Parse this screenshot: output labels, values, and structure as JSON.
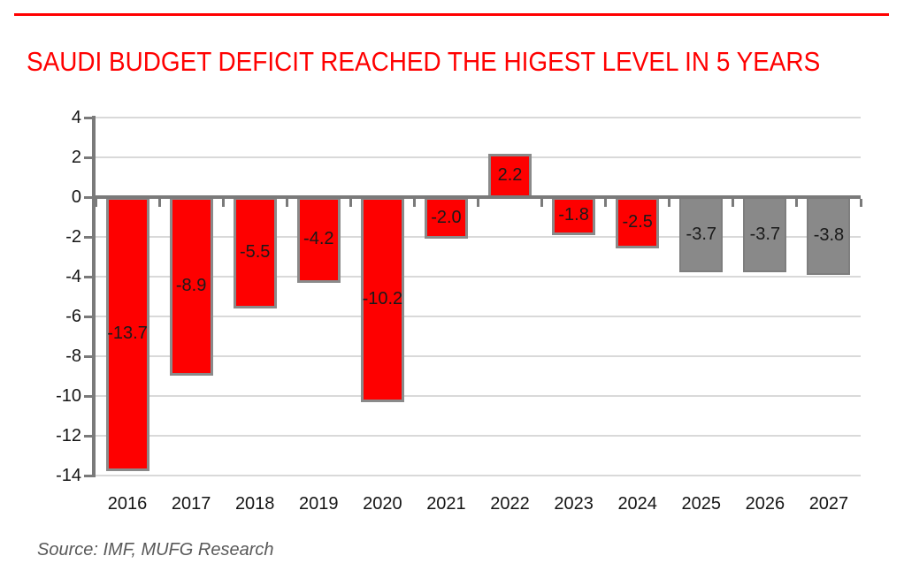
{
  "header": {
    "rule_color": "#FF0000",
    "title": "SAUDI BUDGET DEFICIT REACHED THE HIGEST LEVEL IN 5 YEARS",
    "title_color": "#FF0000"
  },
  "chart_data": {
    "type": "bar",
    "title": "SAUDI BUDGET DEFICIT REACHED THE HIGEST LEVEL IN 5 YEARS",
    "categories": [
      "2016",
      "2017",
      "2018",
      "2019",
      "2020",
      "2021",
      "2022",
      "2023",
      "2024",
      "2025",
      "2026",
      "2027"
    ],
    "values": [
      -13.7,
      -8.9,
      -5.5,
      -4.2,
      -10.2,
      -2.0,
      2.2,
      -1.8,
      -2.5,
      -3.7,
      -3.7,
      -3.8
    ],
    "value_labels": [
      "-13.7",
      "-8.9",
      "-5.5",
      "-4.2",
      "-10.2",
      "-2.0",
      "2.2",
      "-1.8",
      "-2.5",
      "-3.7",
      "-3.7",
      "-3.8"
    ],
    "bar_kinds": [
      "actual",
      "actual",
      "actual",
      "actual",
      "actual",
      "actual",
      "actual",
      "actual",
      "actual",
      "forecast",
      "forecast",
      "forecast"
    ],
    "palette": {
      "actual_fill": "#FE0000",
      "actual_border": "#8A8A8A",
      "forecast_fill": "#898989",
      "forecast_border": "#7E7E7E",
      "axis": "#7A7A7A",
      "gridline": "#D9D9D9",
      "label_text": "#1A1A1A"
    },
    "xlabel": "",
    "ylabel": "",
    "ylim": [
      -14,
      4
    ],
    "ytick_step": 2,
    "grid": true,
    "legend": false
  },
  "footer": {
    "source": "Source: IMF, MUFG Research"
  }
}
